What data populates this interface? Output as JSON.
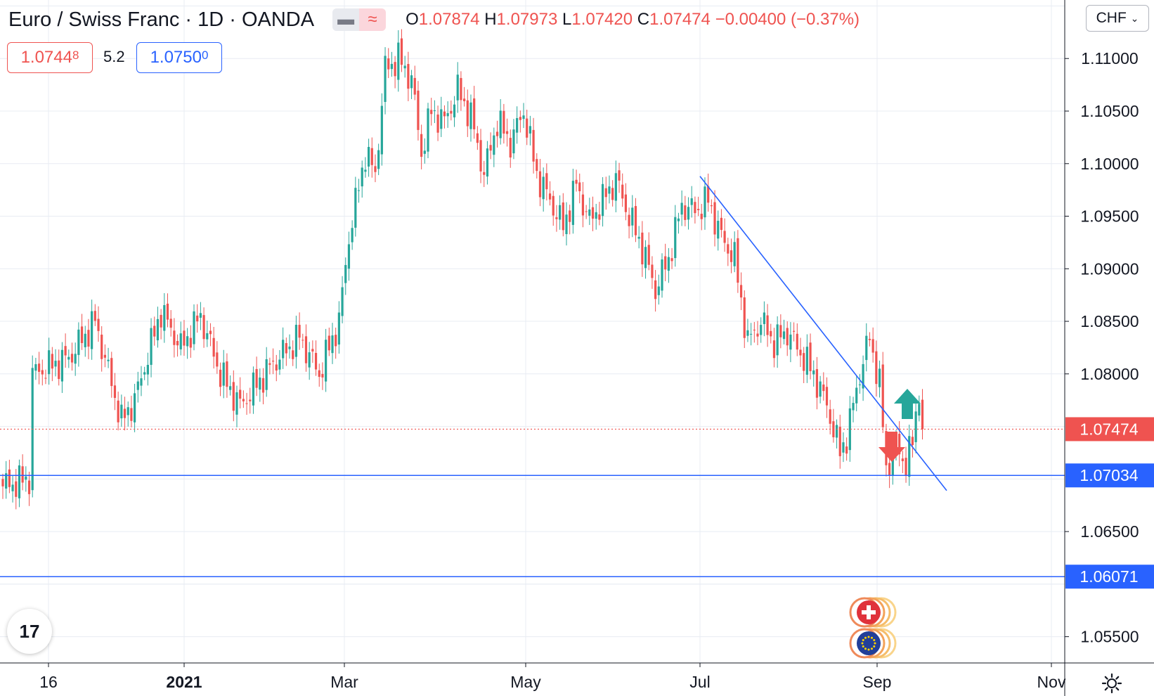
{
  "header": {
    "symbol": "Euro / Swiss Franc · 1D · OANDA",
    "pill_left": "▬",
    "pill_right": "≈",
    "o_label": "O",
    "o_value": "1.07874",
    "h_label": "H",
    "h_value": "1.07973",
    "l_label": "L",
    "l_value": "1.07420",
    "c_label": "C",
    "c_value": "1.07474",
    "change": "−0.00400 (−0.37%)"
  },
  "quote": {
    "bid_main": "1.0744",
    "bid_sup": "8",
    "spread": "5.2",
    "ask_main": "1.0750",
    "ask_sup": "0"
  },
  "currency_button": "CHF",
  "logo_text": "17",
  "colors": {
    "up": "#26a69a",
    "down": "#ef5350",
    "accent": "#2962ff",
    "grid": "#e8ecf3"
  },
  "chart_data": {
    "type": "candlestick",
    "symbol": "EURCHF",
    "yaxis_ticks": [
      "1.11000",
      "1.10500",
      "1.10000",
      "1.09500",
      "1.09000",
      "1.08500",
      "1.08000",
      "1.06500",
      "1.05500"
    ],
    "ylim": [
      1.0525,
      1.1155
    ],
    "xaxis_ticks": [
      {
        "label": "16",
        "bold": false
      },
      {
        "label": "2021",
        "bold": true
      },
      {
        "label": "Mar",
        "bold": false
      },
      {
        "label": "May",
        "bold": false
      },
      {
        "label": "Jul",
        "bold": false
      },
      {
        "label": "Sep",
        "bold": false
      },
      {
        "label": "Nov",
        "bold": false
      }
    ],
    "price_labels": [
      {
        "text": "1.07474",
        "value": 1.07474,
        "color": "#ef5350",
        "line": "dotted"
      },
      {
        "text": "1.07034",
        "value": 1.07034,
        "color": "#2962ff",
        "line": "solid"
      },
      {
        "text": "1.06071",
        "value": 1.06071,
        "color": "#2962ff",
        "line": "solid"
      }
    ],
    "trendline": {
      "from": {
        "date": "Jul",
        "value": 1.0988
      },
      "to": {
        "date": "mid-Sep",
        "value": 1.0689
      }
    },
    "arrows": [
      {
        "direction": "up",
        "color": "#26a69a"
      },
      {
        "direction": "down",
        "color": "#ef5350"
      }
    ],
    "anchors": [
      {
        "i": 0,
        "c": 1.0693
      },
      {
        "i": 8,
        "c": 1.07
      },
      {
        "i": 9,
        "c": 1.08
      },
      {
        "i": 20,
        "c": 1.0815
      },
      {
        "i": 28,
        "c": 1.085
      },
      {
        "i": 36,
        "c": 1.0755
      },
      {
        "i": 40,
        "c": 1.0775
      },
      {
        "i": 48,
        "c": 1.086
      },
      {
        "i": 54,
        "c": 1.0825
      },
      {
        "i": 60,
        "c": 1.0855
      },
      {
        "i": 66,
        "c": 1.08
      },
      {
        "i": 72,
        "c": 1.077
      },
      {
        "i": 82,
        "c": 1.081
      },
      {
        "i": 90,
        "c": 1.0835
      },
      {
        "i": 96,
        "c": 1.08
      },
      {
        "i": 102,
        "c": 1.085
      },
      {
        "i": 105,
        "c": 1.093
      },
      {
        "i": 110,
        "c": 1.101
      },
      {
        "i": 113,
        "c": 1.099
      },
      {
        "i": 116,
        "c": 1.109
      },
      {
        "i": 120,
        "c": 1.11
      },
      {
        "i": 124,
        "c": 1.108
      },
      {
        "i": 127,
        "c": 1.101
      },
      {
        "i": 130,
        "c": 1.105
      },
      {
        "i": 134,
        "c": 1.104
      },
      {
        "i": 138,
        "c": 1.107
      },
      {
        "i": 142,
        "c": 1.1045
      },
      {
        "i": 146,
        "c": 1.099
      },
      {
        "i": 150,
        "c": 1.104
      },
      {
        "i": 154,
        "c": 1.102
      },
      {
        "i": 158,
        "c": 1.105
      },
      {
        "i": 162,
        "c": 1.099
      },
      {
        "i": 166,
        "c": 1.0965
      },
      {
        "i": 170,
        "c": 1.094
      },
      {
        "i": 174,
        "c": 1.098
      },
      {
        "i": 178,
        "c": 1.0945
      },
      {
        "i": 182,
        "c": 1.0965
      },
      {
        "i": 186,
        "c": 1.0985
      },
      {
        "i": 190,
        "c": 1.095
      },
      {
        "i": 194,
        "c": 1.092
      },
      {
        "i": 198,
        "c": 1.088
      },
      {
        "i": 202,
        "c": 1.091
      },
      {
        "i": 206,
        "c": 1.096
      },
      {
        "i": 210,
        "c": 1.0955
      },
      {
        "i": 214,
        "c": 1.0965
      },
      {
        "i": 218,
        "c": 1.093
      },
      {
        "i": 222,
        "c": 1.091
      },
      {
        "i": 226,
        "c": 1.083
      },
      {
        "i": 230,
        "c": 1.085
      },
      {
        "i": 234,
        "c": 1.083
      },
      {
        "i": 238,
        "c": 1.084
      },
      {
        "i": 242,
        "c": 1.082
      },
      {
        "i": 246,
        "c": 1.08
      },
      {
        "i": 250,
        "c": 1.077
      },
      {
        "i": 254,
        "c": 1.0725
      },
      {
        "i": 256,
        "c": 1.074
      },
      {
        "i": 260,
        "c": 1.08
      },
      {
        "i": 263,
        "c": 1.0835
      },
      {
        "i": 266,
        "c": 1.079
      },
      {
        "i": 268,
        "c": 1.071
      },
      {
        "i": 271,
        "c": 1.073
      },
      {
        "i": 274,
        "c": 1.0715
      },
      {
        "i": 276,
        "c": 1.0735
      },
      {
        "i": 278,
        "c": 1.0787
      },
      {
        "i": 279,
        "c": 1.07474
      }
    ]
  }
}
